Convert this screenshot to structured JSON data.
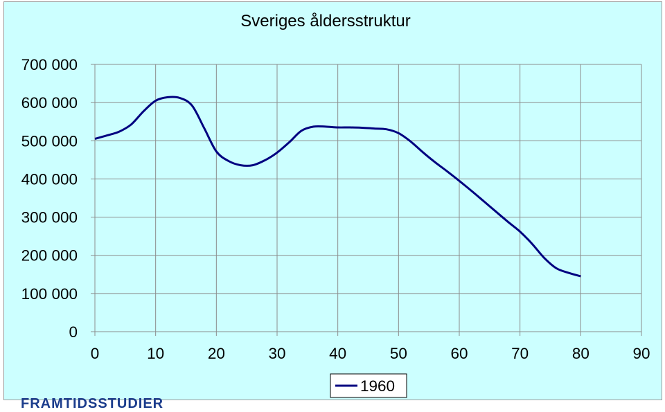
{
  "chart_data": {
    "type": "line",
    "title": "Sveriges åldersstruktur",
    "xlabel": "",
    "ylabel": "",
    "xlim": [
      0,
      90
    ],
    "ylim": [
      0,
      700000
    ],
    "x_ticks": [
      "0",
      "10",
      "20",
      "30",
      "40",
      "50",
      "60",
      "70",
      "80",
      "90"
    ],
    "y_ticks": [
      "0",
      "100 000",
      "200 000",
      "300 000",
      "400 000",
      "500 000",
      "600 000",
      "700 000"
    ],
    "grid": true,
    "legend_position": "bottom",
    "series": [
      {
        "name": "1960",
        "color": "#000080",
        "x": [
          0,
          2,
          4,
          6,
          8,
          10,
          12,
          14,
          16,
          18,
          20,
          22,
          24,
          26,
          28,
          30,
          32,
          34,
          36,
          38,
          40,
          42,
          44,
          46,
          48,
          50,
          52,
          54,
          56,
          58,
          60,
          62,
          64,
          66,
          68,
          70,
          72,
          74,
          76,
          78,
          80
        ],
        "y": [
          505000,
          514000,
          524000,
          543000,
          577000,
          605000,
          614000,
          612000,
          592000,
          533000,
          472000,
          447000,
          436000,
          436000,
          449000,
          469000,
          496000,
          526000,
          537000,
          537000,
          535000,
          535000,
          534000,
          532000,
          530000,
          520000,
          498000,
          470000,
          444000,
          420000,
          395000,
          369000,
          342000,
          315000,
          288000,
          262000,
          230000,
          193000,
          166000,
          154000,
          145000
        ]
      }
    ]
  },
  "brand": {
    "text": "FRAMTIDSSTUDIER"
  }
}
